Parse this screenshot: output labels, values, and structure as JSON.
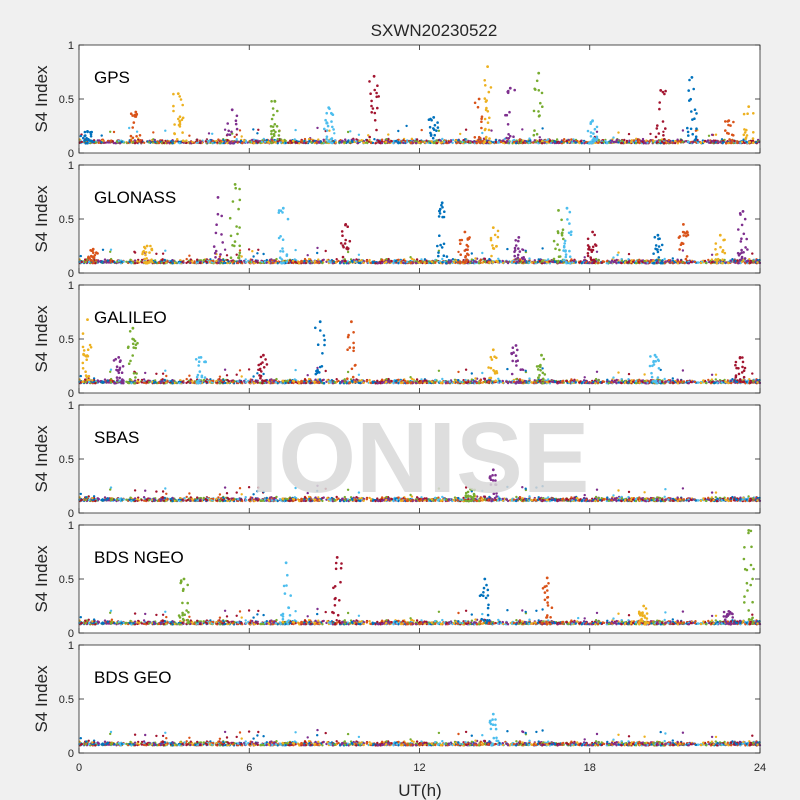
{
  "figure": {
    "title": "SXWN20230522",
    "watermark": "IONISE",
    "xlabel": "UT(h)",
    "ylabel": "S4 Index"
  },
  "colors": {
    "background": "#f0f0f0",
    "axes_face": "#ffffff",
    "axis": "#262626",
    "watermark": "#d9d9d9",
    "palette": [
      "#0072BD",
      "#D95319",
      "#EDB120",
      "#7E2F8E",
      "#77AC30",
      "#4DBEEE",
      "#A2142F"
    ]
  },
  "chart_data": {
    "type": "scatter",
    "layout": "6 stacked subplots sharing the UT axis",
    "xlim": [
      0,
      24
    ],
    "xticks": [
      0,
      6,
      12,
      18,
      24
    ],
    "ylim": [
      0,
      1
    ],
    "yticks": [
      0,
      0.5,
      1
    ],
    "ytick_labels": [
      "0",
      "0.5",
      "1"
    ],
    "grid": false,
    "legend": "none",
    "panels": [
      {
        "label": "GPS",
        "baseline": 0.09,
        "spikes": [
          [
            0.3,
            0.2
          ],
          [
            2.0,
            0.38
          ],
          [
            3.5,
            0.55
          ],
          [
            5.4,
            0.4
          ],
          [
            6.9,
            0.48
          ],
          [
            8.8,
            0.42
          ],
          [
            10.4,
            0.71
          ],
          [
            12.5,
            0.33
          ],
          [
            14.1,
            0.5
          ],
          [
            14.4,
            0.8
          ],
          [
            15.2,
            0.6
          ],
          [
            16.2,
            0.74
          ],
          [
            18.1,
            0.3
          ],
          [
            20.5,
            0.58
          ],
          [
            21.6,
            0.7
          ],
          [
            22.9,
            0.3
          ],
          [
            23.6,
            0.43
          ]
        ]
      },
      {
        "label": "GLONASS",
        "baseline": 0.09,
        "spikes": [
          [
            0.5,
            0.22
          ],
          [
            2.4,
            0.25
          ],
          [
            4.9,
            0.7
          ],
          [
            5.5,
            0.82
          ],
          [
            7.2,
            0.6
          ],
          [
            9.4,
            0.45
          ],
          [
            12.8,
            0.65
          ],
          [
            13.6,
            0.38
          ],
          [
            14.6,
            0.42
          ],
          [
            15.5,
            0.33
          ],
          [
            16.9,
            0.58
          ],
          [
            17.2,
            0.6
          ],
          [
            18.1,
            0.38
          ],
          [
            20.4,
            0.35
          ],
          [
            21.3,
            0.45
          ],
          [
            22.6,
            0.35
          ],
          [
            23.4,
            0.57
          ]
        ]
      },
      {
        "label": "GALILEO",
        "baseline": 0.09,
        "spikes": [
          [
            0.3,
            0.68
          ],
          [
            1.4,
            0.33
          ],
          [
            1.9,
            0.6
          ],
          [
            4.3,
            0.33
          ],
          [
            6.5,
            0.35
          ],
          [
            8.5,
            0.66
          ],
          [
            9.6,
            0.66
          ],
          [
            14.6,
            0.4
          ],
          [
            15.4,
            0.44
          ],
          [
            16.3,
            0.35
          ],
          [
            20.3,
            0.35
          ],
          [
            23.3,
            0.33
          ]
        ]
      },
      {
        "label": "SBAS",
        "baseline": 0.11,
        "spikes": [
          [
            14.6,
            0.4
          ],
          [
            13.8,
            0.22
          ]
        ]
      },
      {
        "label": "BDS NGEO",
        "baseline": 0.08,
        "spikes": [
          [
            3.7,
            0.5
          ],
          [
            7.3,
            0.65
          ],
          [
            9.1,
            0.7
          ],
          [
            14.3,
            0.5
          ],
          [
            16.5,
            0.51
          ],
          [
            19.9,
            0.25
          ],
          [
            22.9,
            0.2
          ],
          [
            23.6,
            0.95
          ]
        ]
      },
      {
        "label": "BDS GEO",
        "baseline": 0.07,
        "spikes": [
          [
            14.6,
            0.36
          ]
        ]
      }
    ]
  }
}
